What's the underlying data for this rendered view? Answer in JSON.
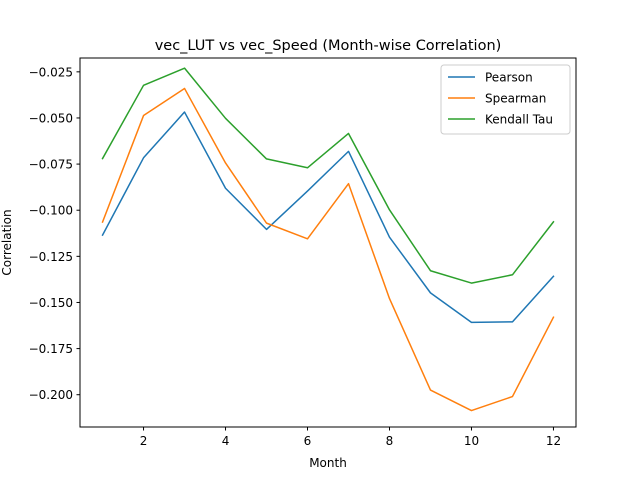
{
  "chart_data": {
    "type": "line",
    "title": "vec_LUT vs vec_Speed (Month-wise Correlation)",
    "xlabel": "Month",
    "ylabel": "Correlation",
    "x": [
      1,
      2,
      3,
      4,
      5,
      6,
      7,
      8,
      9,
      10,
      11,
      12
    ],
    "xlim": [
      0.45,
      12.55
    ],
    "ylim": [
      -0.2175,
      -0.0175
    ],
    "xticks": [
      2,
      4,
      6,
      8,
      10,
      12
    ],
    "xtick_labels": [
      "2",
      "4",
      "6",
      "8",
      "10",
      "12"
    ],
    "yticks": [
      -0.025,
      -0.05,
      -0.075,
      -0.1,
      -0.125,
      -0.15,
      -0.175,
      -0.2
    ],
    "ytick_labels": [
      "−0.025",
      "−0.050",
      "−0.075",
      "−0.100",
      "−0.125",
      "−0.150",
      "−0.175",
      "−0.200"
    ],
    "grid": false,
    "legend_position": "top-right",
    "series": [
      {
        "name": "Pearson",
        "color": "#1f77b4",
        "values": [
          -0.1135,
          -0.0716,
          -0.0468,
          -0.0881,
          -0.1104,
          -0.0896,
          -0.0681,
          -0.1146,
          -0.1448,
          -0.1608,
          -0.1605,
          -0.1358
        ]
      },
      {
        "name": "Spearman",
        "color": "#ff7f0e",
        "values": [
          -0.1064,
          -0.0487,
          -0.034,
          -0.0744,
          -0.107,
          -0.1155,
          -0.0856,
          -0.1479,
          -0.1975,
          -0.2086,
          -0.201,
          -0.158
        ]
      },
      {
        "name": "Kendall Tau",
        "color": "#2ca02c",
        "values": [
          -0.072,
          -0.0323,
          -0.023,
          -0.0502,
          -0.0722,
          -0.077,
          -0.0584,
          -0.0998,
          -0.1328,
          -0.1395,
          -0.135,
          -0.1063
        ]
      }
    ]
  }
}
